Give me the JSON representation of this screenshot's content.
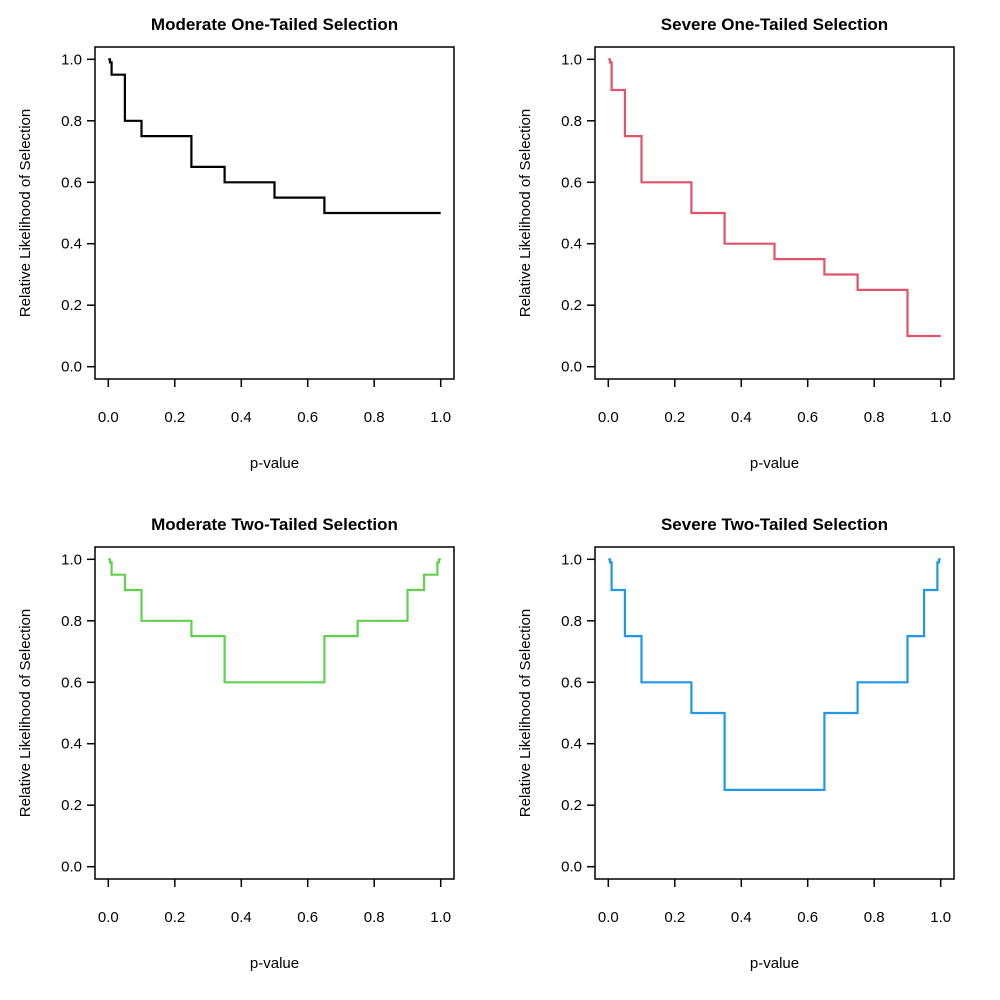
{
  "figure": {
    "background": "#ffffff",
    "layout": "2x2 grid of step-function plots"
  },
  "chart_data": [
    {
      "type": "line",
      "subtype": "step",
      "title": "Moderate One-Tailed Selection",
      "xlabel": "p-value",
      "ylabel": "Relative Likelihood of Selection",
      "color": "#000000",
      "xlim": [
        0,
        1
      ],
      "ylim": [
        0,
        1
      ],
      "x_ticks": [
        0.0,
        0.2,
        0.4,
        0.6,
        0.8,
        1.0
      ],
      "y_ticks": [
        0.0,
        0.2,
        0.4,
        0.6,
        0.8,
        1.0
      ],
      "tick_decimals": 1,
      "grid": false,
      "legend": false,
      "p_cutpoints": [
        0,
        0.005,
        0.01,
        0.05,
        0.1,
        0.25,
        0.35,
        0.5,
        0.65,
        0.75,
        0.9,
        0.95,
        0.99,
        0.995,
        1.0
      ],
      "weights": [
        1.0,
        0.99,
        0.95,
        0.8,
        0.75,
        0.65,
        0.6,
        0.55,
        0.5,
        0.5,
        0.5,
        0.5,
        0.5,
        0.5
      ]
    },
    {
      "type": "line",
      "subtype": "step",
      "title": "Severe One-Tailed Selection",
      "xlabel": "p-value",
      "ylabel": "Relative Likelihood of Selection",
      "color": "#DF536B",
      "xlim": [
        0,
        1
      ],
      "ylim": [
        0,
        1
      ],
      "x_ticks": [
        0.0,
        0.2,
        0.4,
        0.6,
        0.8,
        1.0
      ],
      "y_ticks": [
        0.0,
        0.2,
        0.4,
        0.6,
        0.8,
        1.0
      ],
      "tick_decimals": 1,
      "grid": false,
      "legend": false,
      "p_cutpoints": [
        0,
        0.005,
        0.01,
        0.05,
        0.1,
        0.25,
        0.35,
        0.5,
        0.65,
        0.75,
        0.9,
        0.95,
        0.99,
        0.995,
        1.0
      ],
      "weights": [
        1.0,
        0.99,
        0.9,
        0.75,
        0.6,
        0.5,
        0.4,
        0.35,
        0.3,
        0.25,
        0.1,
        0.1,
        0.1,
        0.1
      ]
    },
    {
      "type": "line",
      "subtype": "step",
      "title": "Moderate Two-Tailed Selection",
      "xlabel": "p-value",
      "ylabel": "Relative Likelihood of Selection",
      "color": "#61D04F",
      "xlim": [
        0,
        1
      ],
      "ylim": [
        0,
        1
      ],
      "x_ticks": [
        0.0,
        0.2,
        0.4,
        0.6,
        0.8,
        1.0
      ],
      "y_ticks": [
        0.0,
        0.2,
        0.4,
        0.6,
        0.8,
        1.0
      ],
      "tick_decimals": 1,
      "grid": false,
      "legend": false,
      "p_cutpoints": [
        0,
        0.005,
        0.01,
        0.05,
        0.1,
        0.25,
        0.35,
        0.5,
        0.65,
        0.75,
        0.9,
        0.95,
        0.99,
        0.995,
        1.0
      ],
      "weights": [
        1.0,
        0.99,
        0.95,
        0.9,
        0.8,
        0.75,
        0.6,
        0.6,
        0.75,
        0.8,
        0.9,
        0.95,
        0.99,
        1.0
      ]
    },
    {
      "type": "line",
      "subtype": "step",
      "title": "Severe Two-Tailed Selection",
      "xlabel": "p-value",
      "ylabel": "Relative Likelihood of Selection",
      "color": "#2297E6",
      "xlim": [
        0,
        1
      ],
      "ylim": [
        0,
        1
      ],
      "x_ticks": [
        0.0,
        0.2,
        0.4,
        0.6,
        0.8,
        1.0
      ],
      "y_ticks": [
        0.0,
        0.2,
        0.4,
        0.6,
        0.8,
        1.0
      ],
      "tick_decimals": 1,
      "grid": false,
      "legend": false,
      "p_cutpoints": [
        0,
        0.005,
        0.01,
        0.05,
        0.1,
        0.25,
        0.35,
        0.5,
        0.65,
        0.75,
        0.9,
        0.95,
        0.99,
        0.995,
        1.0
      ],
      "weights": [
        1.0,
        0.99,
        0.9,
        0.75,
        0.6,
        0.5,
        0.25,
        0.25,
        0.5,
        0.6,
        0.75,
        0.9,
        0.99,
        1.0
      ]
    }
  ]
}
